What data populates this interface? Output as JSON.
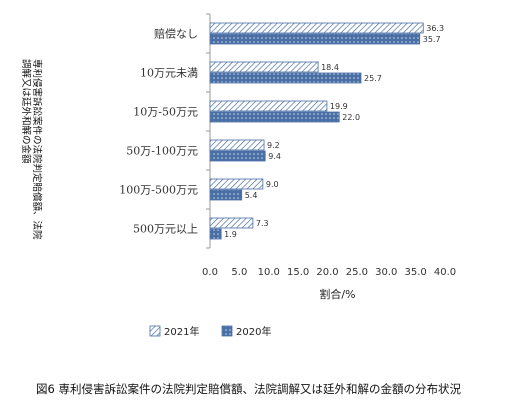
{
  "chart_data": {
    "type": "bar",
    "orientation": "horizontal",
    "categories": [
      "赔偿なし",
      "10万元未満",
      "10万-50万元",
      "50万-100万元",
      "100万-500万元",
      "500万元以上"
    ],
    "series": [
      {
        "name": "2021年",
        "values": [
          36.3,
          18.4,
          19.9,
          9.2,
          9.0,
          7.3
        ],
        "color": "#4a6fa5",
        "pattern": "hatch"
      },
      {
        "name": "2020年",
        "values": [
          35.7,
          25.7,
          22.0,
          9.4,
          5.4,
          1.9
        ],
        "color": "#4a6fa5",
        "pattern": "dots"
      }
    ],
    "value_labels": [
      [
        "36.3",
        "18.4",
        "19.9",
        "9.2",
        "9.0",
        "7.3"
      ],
      [
        "35.7",
        "25.7",
        "22.0",
        "9.4",
        "5.4",
        "1.9"
      ]
    ],
    "xlabel": "割合/%",
    "ylabel_lines": [
      "専利侵害訴訟案件の法院判定賠償額、法院",
      "調解又は廷外和解の金額"
    ],
    "xticks": [
      "0.0",
      "5.0",
      "10.0",
      "15.0",
      "20.0",
      "25.0",
      "30.0",
      "35.0",
      "40.0"
    ],
    "xlim": [
      0,
      40
    ],
    "legend_position": "bottom",
    "grid": false
  },
  "caption": "図6 専利侵害訴訟案件の法院判定賠償額、法院調解又は廷外和解の金額の分布状況"
}
